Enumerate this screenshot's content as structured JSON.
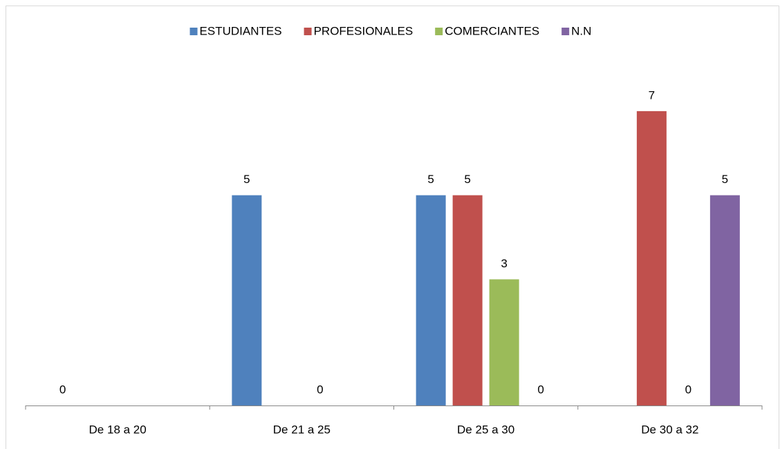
{
  "chart_data": {
    "type": "bar",
    "categories": [
      "De 18 a 20",
      "De 21 a 25",
      "De 25 a 30",
      "De 30 a 32"
    ],
    "series": [
      {
        "name": "ESTUDIANTES",
        "color": "#4f81bd",
        "values": [
          0,
          5,
          5,
          null
        ]
      },
      {
        "name": "PROFESIONALES",
        "color": "#c0504d",
        "values": [
          null,
          null,
          5,
          7
        ]
      },
      {
        "name": "COMERCIANTES",
        "color": "#9bbb59",
        "values": [
          null,
          0,
          3,
          0
        ]
      },
      {
        "name": "N.N",
        "color": "#8064a2",
        "values": [
          null,
          null,
          0,
          5
        ]
      }
    ],
    "ylim": [
      0,
      8
    ],
    "legend": "top"
  }
}
